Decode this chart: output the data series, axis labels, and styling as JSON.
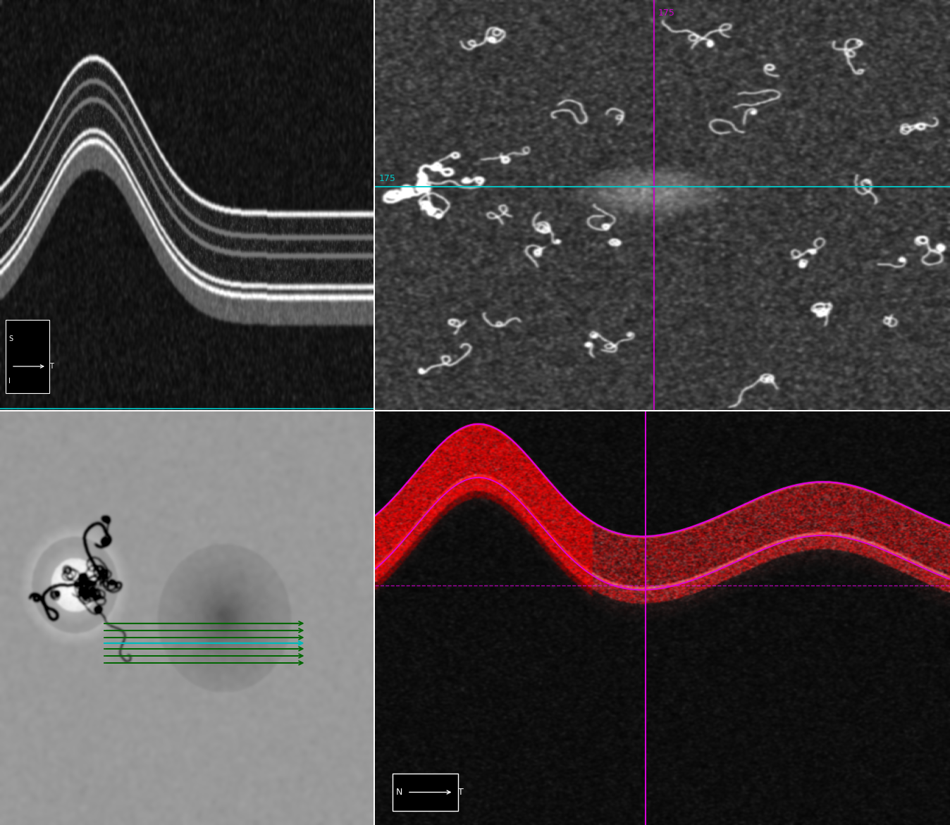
{
  "layout": {
    "figsize": [
      13.48,
      11.71
    ],
    "dpi": 100,
    "bg_color": "#ffffff"
  },
  "panels": {
    "divider_color": "#aaaaaa",
    "top_left": {
      "bg": "#000000",
      "border_bottom_color": "#00ffff",
      "compass": {
        "label_s": "S",
        "label_t": "T",
        "label_i": "I"
      }
    },
    "top_right": {
      "bg": "#303030",
      "crosshair_v_color": "#cc00cc",
      "crosshair_h_color": "#00cccc",
      "crosshair_label": "175",
      "label_fontsize": 9
    },
    "bottom_left": {
      "bg": "#888888",
      "arrow_color_green": "#006600",
      "arrow_color_dark_green": "#004400",
      "arrow_color_cyan": "#00cccc",
      "n_green_above": 3,
      "n_green_below": 3
    },
    "bottom_right": {
      "bg": "#000000",
      "magenta_color": "#dd00dd",
      "compass_n": "N",
      "compass_t": "T"
    }
  }
}
